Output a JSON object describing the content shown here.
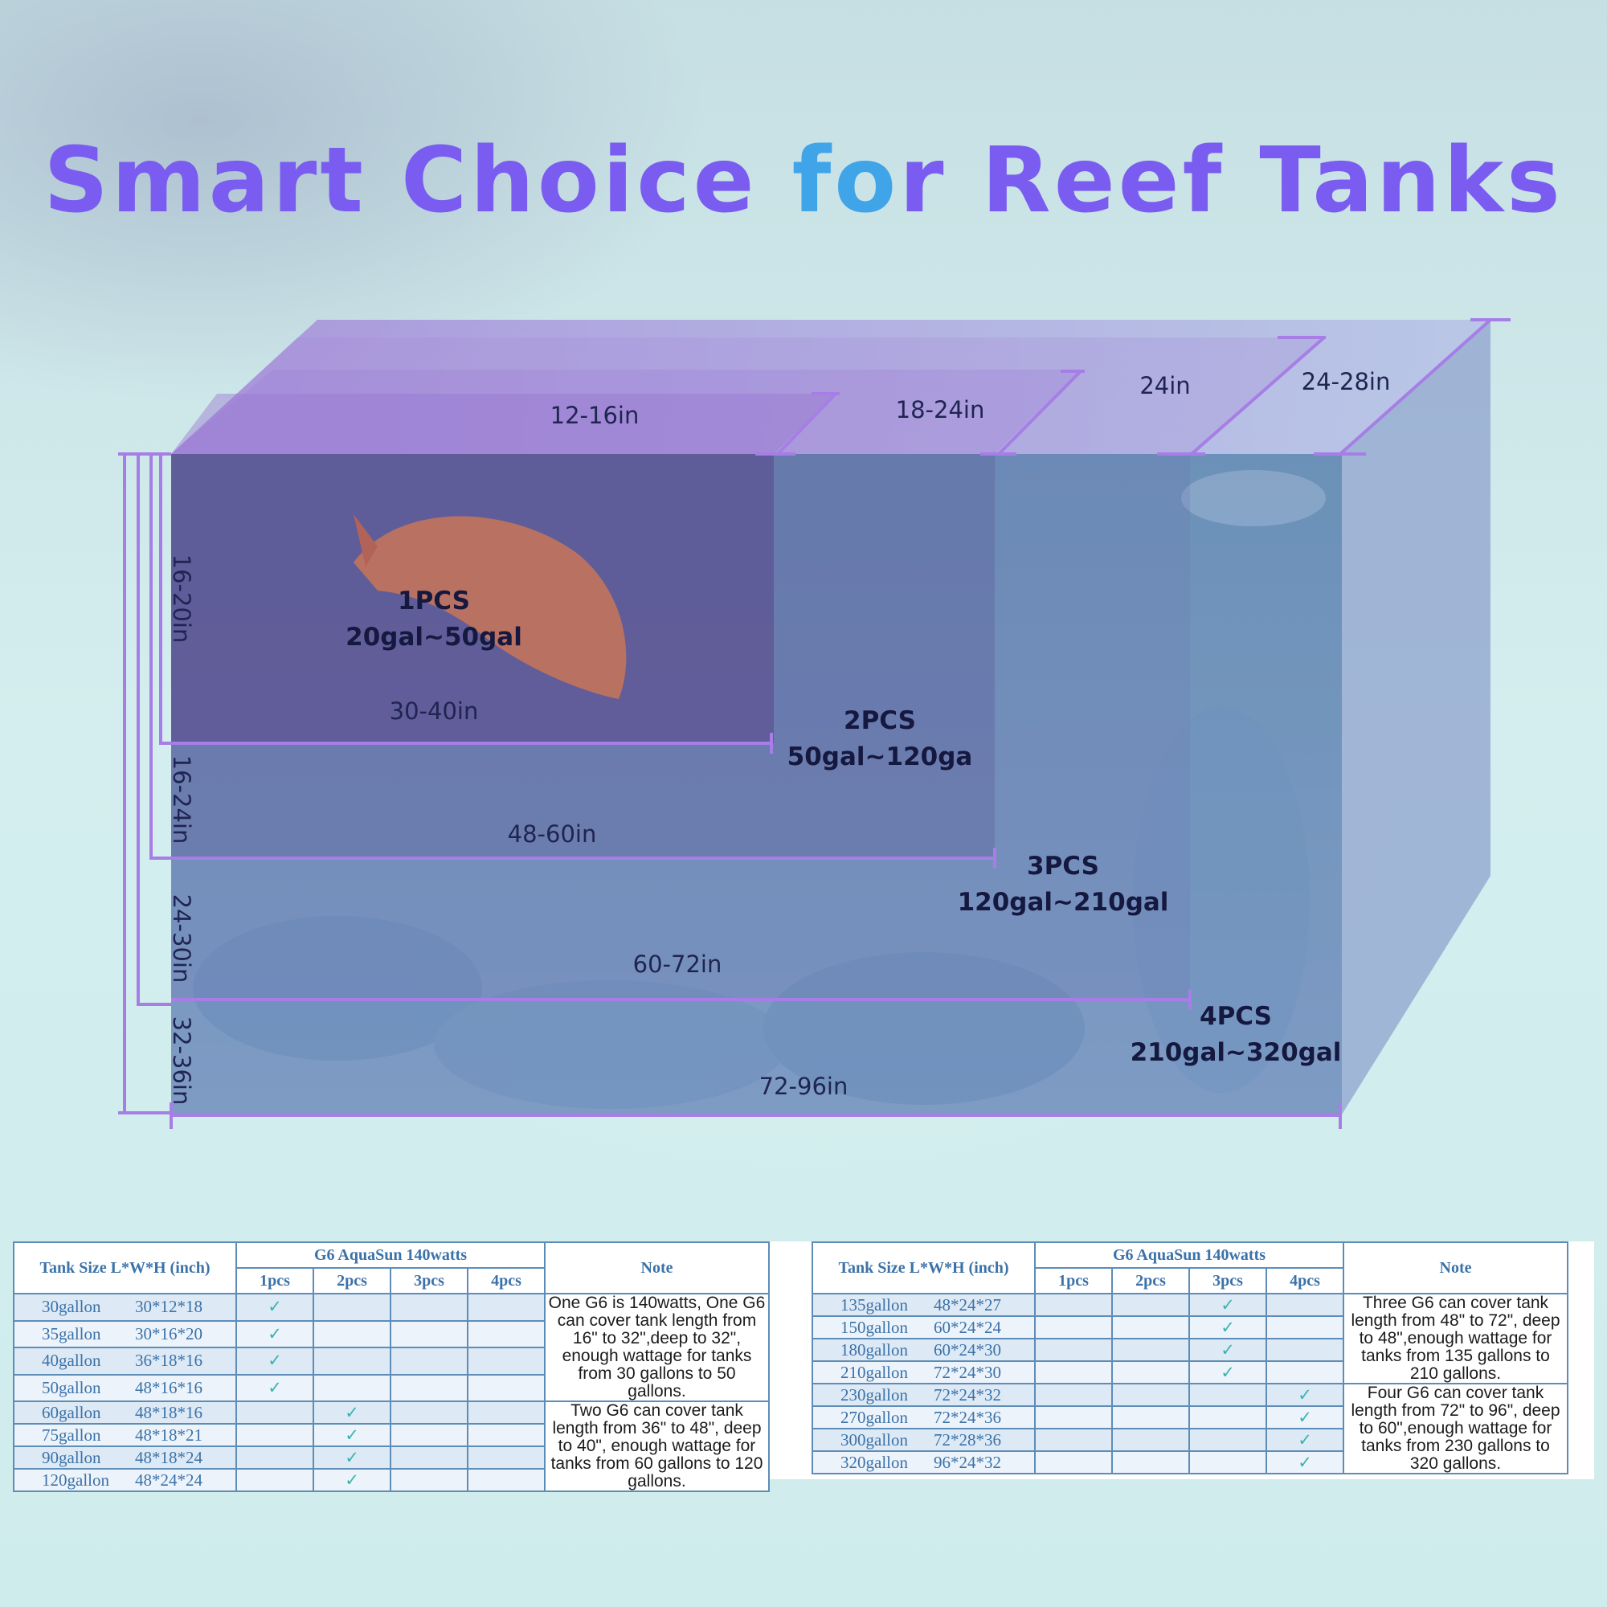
{
  "title": {
    "part1": "Smart Choice ",
    "accent": "fo",
    "part2": "r Reef Tanks"
  },
  "diagram": {
    "widths": [
      "12-16in",
      "18-24in",
      "24in",
      "24-28in"
    ],
    "heights": [
      "16-20in",
      "16-24in",
      "24-30in",
      "32-36in"
    ],
    "lengths": [
      "30-40in",
      "48-60in",
      "60-72in",
      "72-96in"
    ],
    "tiers": [
      {
        "count": "1PCS",
        "range": "20gal~50gal"
      },
      {
        "count": "2PCS",
        "range": "50gal~120ga"
      },
      {
        "count": "3PCS",
        "range": "120gal~210gal"
      },
      {
        "count": "4PCS",
        "range": "210gal~320gal"
      }
    ]
  },
  "tables": {
    "headers": {
      "size": "Tank Size L*W*H (inch)",
      "product": "G6 AquaSun 140watts",
      "note": "Note",
      "cols": [
        "1pcs",
        "2pcs",
        "3pcs",
        "4pcs"
      ]
    },
    "check": "✓",
    "left": {
      "rows": [
        {
          "gallon": "30gallon",
          "dims": "30*12*18",
          "pcs": 1
        },
        {
          "gallon": "35gallon",
          "dims": "30*16*20",
          "pcs": 1
        },
        {
          "gallon": "40gallon",
          "dims": "36*18*16",
          "pcs": 1
        },
        {
          "gallon": "50gallon",
          "dims": "48*16*16",
          "pcs": 1
        },
        {
          "gallon": "60gallon",
          "dims": "48*18*16",
          "pcs": 2
        },
        {
          "gallon": "75gallon",
          "dims": "48*18*21",
          "pcs": 2
        },
        {
          "gallon": "90gallon",
          "dims": "48*18*24",
          "pcs": 2
        },
        {
          "gallon": "120gallon",
          "dims": "48*24*24",
          "pcs": 2
        }
      ],
      "notes": [
        "One G6 is 140watts, One G6 can cover tank length from 16\" to 32\",deep  to 32\", enough wattage for tanks from 30 gallons to 50 gallons.",
        "Two G6 can cover tank length from 36\" to 48\", deep to 40\", enough wattage for tanks from 60 gallons to 120 gallons."
      ]
    },
    "right": {
      "rows": [
        {
          "gallon": "135gallon",
          "dims": "48*24*27",
          "pcs": 3
        },
        {
          "gallon": "150gallon",
          "dims": "60*24*24",
          "pcs": 3
        },
        {
          "gallon": "180gallon",
          "dims": "60*24*30",
          "pcs": 3
        },
        {
          "gallon": "210gallon",
          "dims": "72*24*30",
          "pcs": 3
        },
        {
          "gallon": "230gallon",
          "dims": "72*24*32",
          "pcs": 4
        },
        {
          "gallon": "270gallon",
          "dims": "72*24*36",
          "pcs": 4
        },
        {
          "gallon": "300gallon",
          "dims": "72*28*36",
          "pcs": 4
        },
        {
          "gallon": "320gallon",
          "dims": "96*24*32",
          "pcs": 4
        }
      ],
      "notes": [
        "Three G6 can cover tank length from 48\" to 72\", deep to 48\",enough wattage for tanks from 135 gallons to 210 gallons.",
        "Four G6 can cover tank length from 72\" to 96\", deep to 60\",enough wattage for tanks from 230 gallons to 320 gallons."
      ]
    }
  }
}
